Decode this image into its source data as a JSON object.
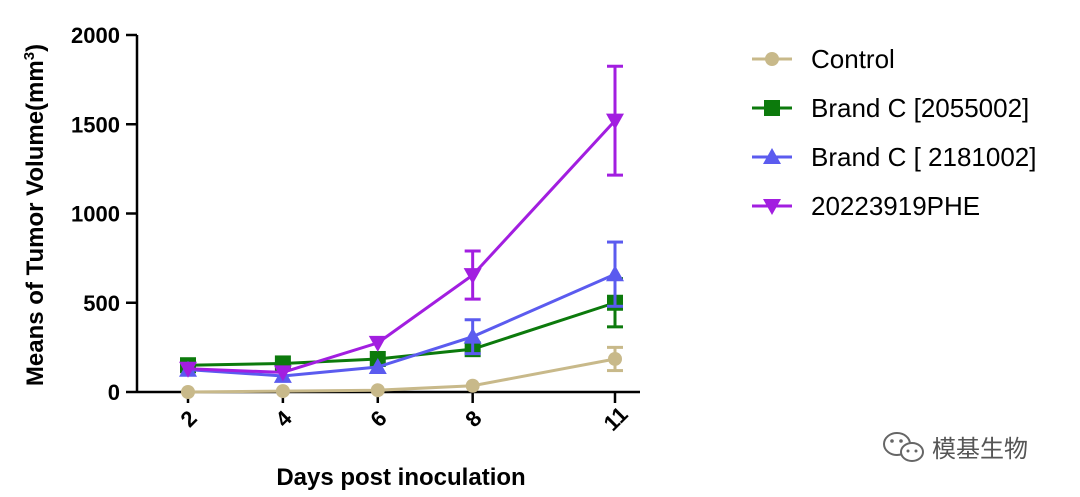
{
  "chart_data": {
    "type": "line",
    "title": "",
    "xlabel": "Days post inoculation",
    "ylabel": "Means of Tumor Volume(mm",
    "ylabel_sup": "3",
    "ylabel_close": ")",
    "x": [
      2,
      4,
      6,
      8,
      11
    ],
    "x_tick_labels": [
      "2",
      "4",
      "6",
      "8",
      "11"
    ],
    "y_ticks": [
      0,
      500,
      1000,
      1500,
      2000
    ],
    "y_tick_labels": [
      "0",
      "500",
      "1000",
      "1500",
      "2000"
    ],
    "ylim": [
      0,
      2000
    ],
    "legend_position": "top-right",
    "series": [
      {
        "name": "Control",
        "color": "#c8b98a",
        "marker": "circle",
        "values": [
          0,
          5,
          10,
          35,
          185
        ],
        "errors": [
          0,
          0,
          0,
          0,
          65
        ]
      },
      {
        "name": "Brand C [2055002]",
        "color": "#0c7a0c",
        "marker": "square",
        "values": [
          150,
          160,
          185,
          240,
          500
        ],
        "errors": [
          25,
          0,
          0,
          0,
          135
        ]
      },
      {
        "name": "Brand C [ 2181002]",
        "color": "#5b5bef",
        "marker": "triangle-up",
        "values": [
          125,
          90,
          140,
          310,
          660
        ],
        "errors": [
          0,
          0,
          0,
          95,
          180
        ]
      },
      {
        "name": "20223919PHE",
        "color": "#a21ee0",
        "marker": "triangle-down",
        "values": [
          130,
          110,
          275,
          655,
          1520
        ],
        "errors": [
          0,
          0,
          0,
          135,
          305
        ]
      }
    ]
  },
  "watermark": {
    "text": "模基生物",
    "icon": "wechat-icon"
  }
}
